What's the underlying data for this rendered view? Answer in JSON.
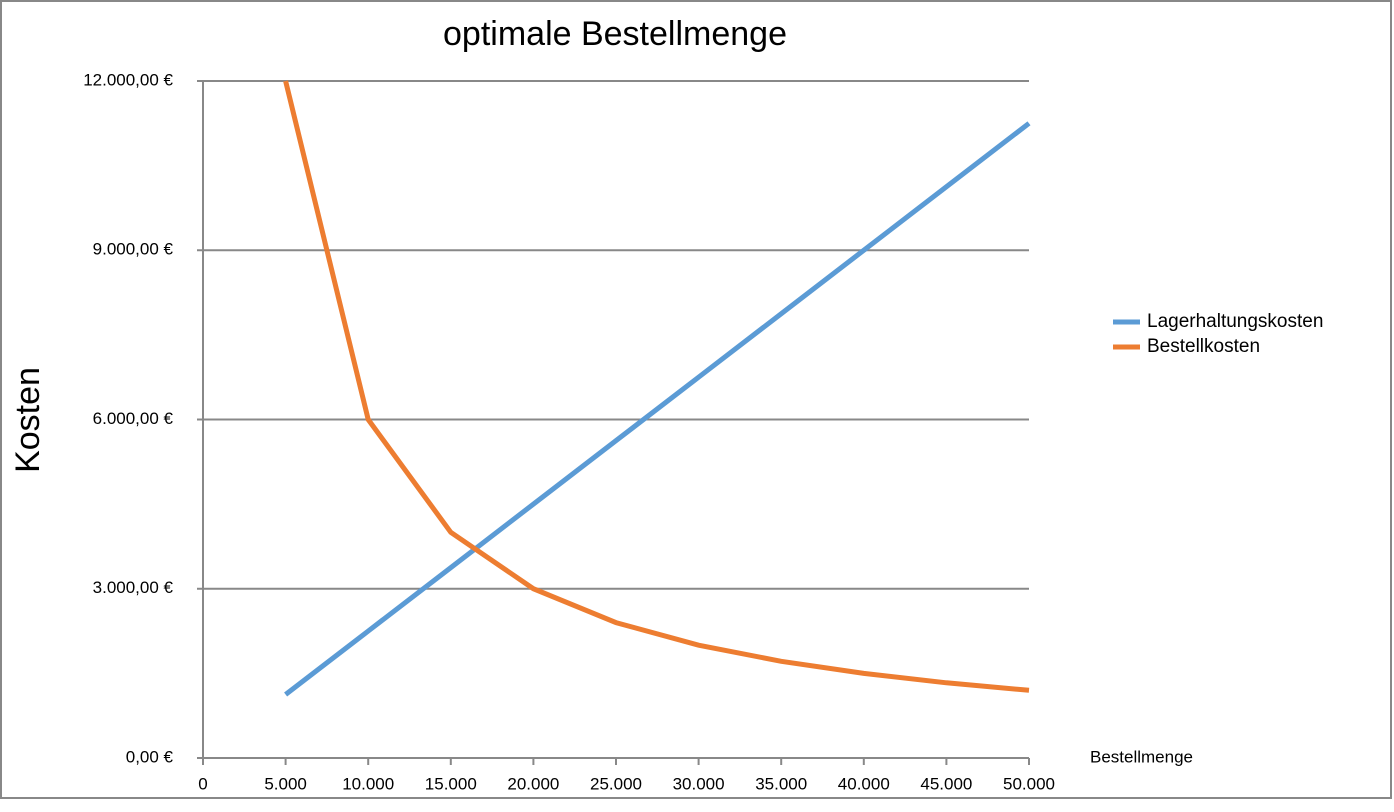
{
  "chart_data": {
    "type": "line",
    "title": "optimale Bestellmenge",
    "x_label": "Bestellmenge",
    "y_label": "Kosten",
    "x": [
      5000,
      10000,
      15000,
      20000,
      25000,
      30000,
      35000,
      40000,
      45000,
      50000
    ],
    "series": [
      {
        "name": "Lagerhaltungskosten",
        "color": "#5b9bd5",
        "values": [
          1125,
          2250,
          3375,
          4500,
          5625,
          6750,
          7875,
          9000,
          10125,
          11250
        ]
      },
      {
        "name": "Bestellkosten",
        "color": "#ed7d31",
        "values": [
          12000,
          6000,
          4000,
          3000,
          2400,
          2000,
          1714,
          1500,
          1333,
          1200
        ]
      }
    ],
    "xlim": [
      0,
      50000
    ],
    "xticks": [
      0,
      {
        "value": 5000,
        "label": "5.000"
      },
      {
        "value": 10000,
        "label": "10.000"
      },
      {
        "value": 15000,
        "label": "15.000"
      },
      {
        "value": 20000,
        "label": "20.000"
      },
      {
        "value": 25000,
        "label": "25.000"
      },
      {
        "value": 30000,
        "label": "30.000"
      },
      {
        "value": 35000,
        "label": "35.000"
      },
      {
        "value": 40000,
        "label": "40.000"
      },
      {
        "value": 45000,
        "label": "45.000"
      },
      {
        "value": 50000,
        "label": "50.000"
      }
    ],
    "ylim": [
      0,
      12000
    ],
    "yticks": [
      {
        "value": 0,
        "label": "0,00 €"
      },
      {
        "value": 3000,
        "label": "3.000,00 €"
      },
      {
        "value": 6000,
        "label": "6.000,00 €"
      },
      {
        "value": 9000,
        "label": "9.000,00 €"
      },
      {
        "value": 12000,
        "label": "12.000,00 €"
      }
    ],
    "grid": true,
    "legend": "right"
  }
}
